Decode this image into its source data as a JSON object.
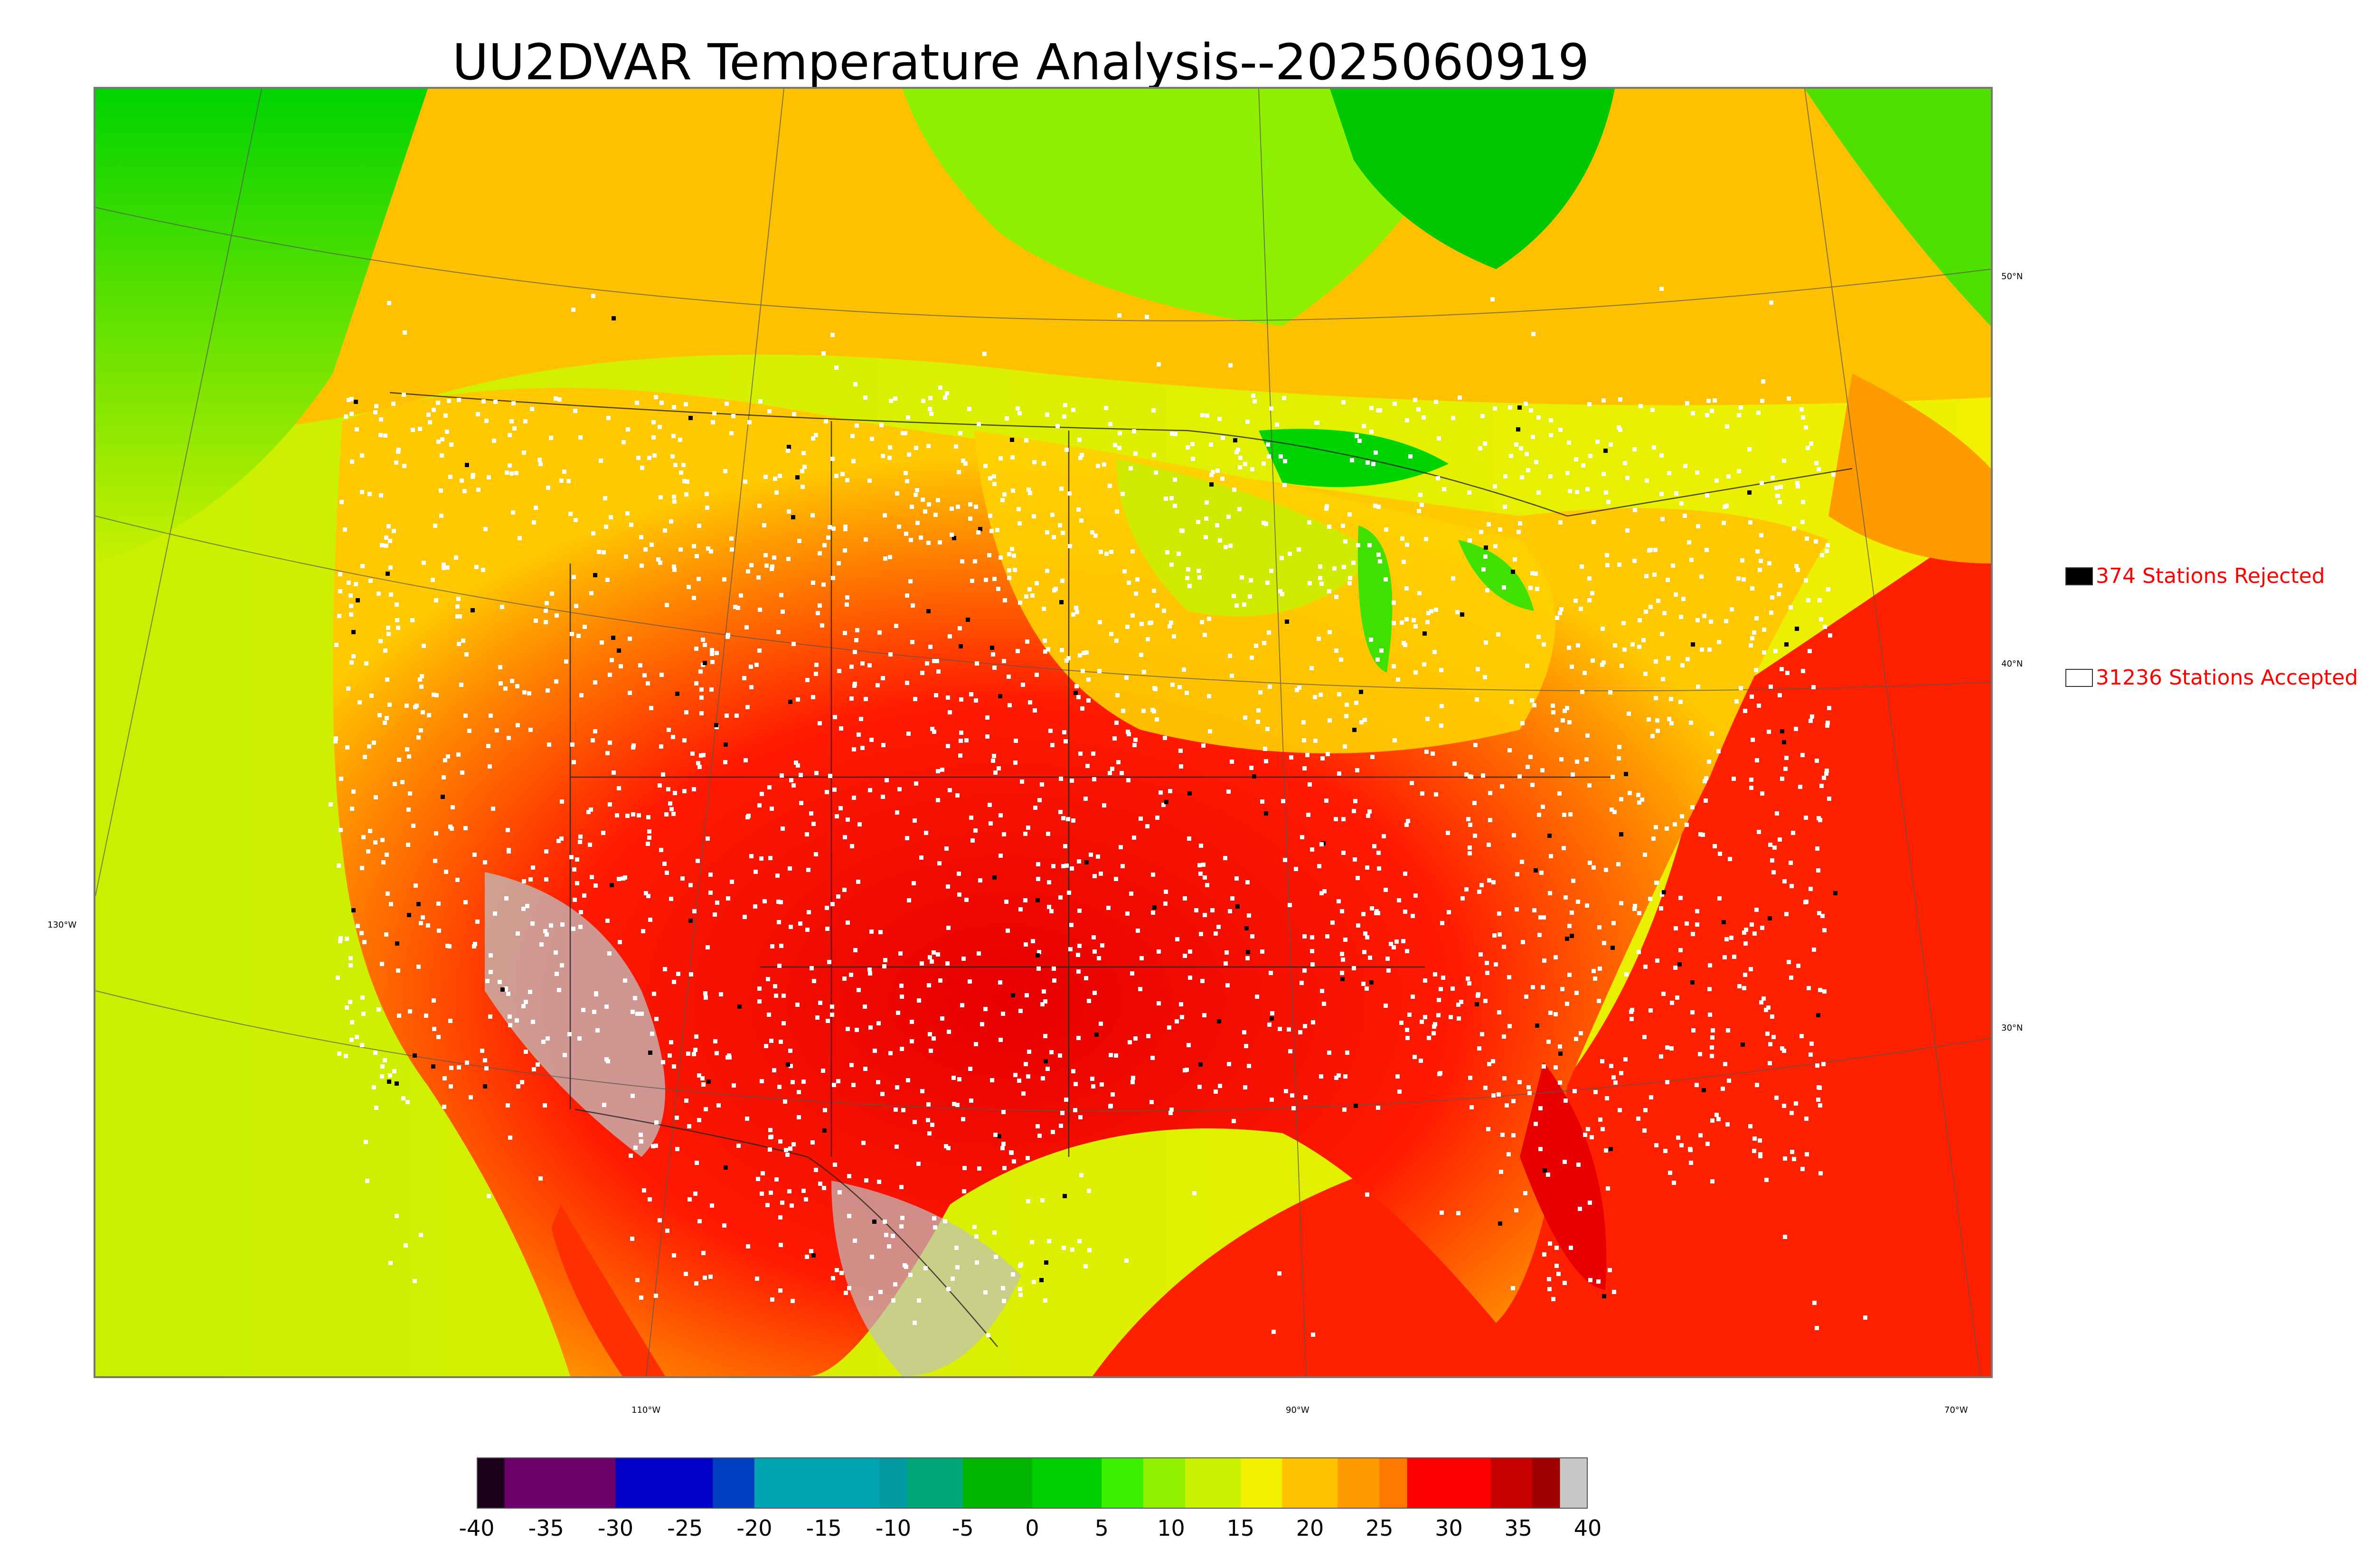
{
  "title": "UU2DVAR Temperature Analysis--2025060919",
  "legend": {
    "rejected": {
      "label": "374 Stations Rejected",
      "color": "#000000"
    },
    "accepted": {
      "label": "31236 Stations Accepted",
      "color": "#ffffff"
    }
  },
  "lon_labels": [
    "130°W",
    "110°W",
    "90°W",
    "70°W"
  ],
  "lat_labels": [
    "50°N",
    "40°N",
    "30°N"
  ],
  "colorbar": {
    "ticks": [
      "-40",
      "-35",
      "-30",
      "-25",
      "-20",
      "-15",
      "-10",
      "-5",
      "0",
      "5",
      "10",
      "15",
      "20",
      "25",
      "30",
      "35",
      "40"
    ],
    "colors": {
      "c-40": "#1a001a",
      "c-35": "#6b006b",
      "c-30": "#0000c8",
      "c-20": "#00a5b4",
      "c-10": "#00a878",
      "c-5": "#00b400",
      "c5": "#3cf000",
      "c10": "#c8f000",
      "c15": "#f0f000",
      "c20": "#ffc000",
      "c25": "#ff7800",
      "c30": "#ff0000",
      "c35": "#c80000",
      "c40": "#c8c8c8"
    }
  }
}
